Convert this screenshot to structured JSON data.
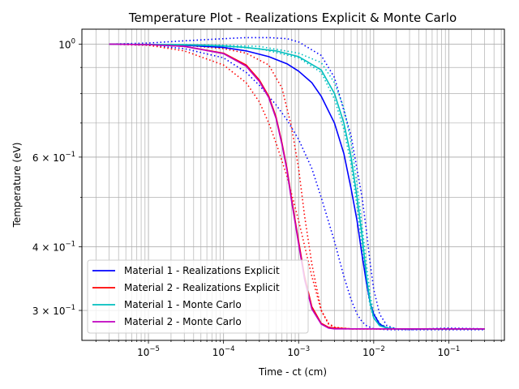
{
  "chart_data": {
    "type": "line",
    "title": "Temperature Plot - Realizations Explicit & Monte Carlo",
    "xlabel": "Time - ct (cm)",
    "ylabel": "Temperature (eV)",
    "xscale": "log",
    "yscale": "log",
    "xlim": [
      1.3e-06,
      0.55
    ],
    "ylim": [
      0.262,
      1.07
    ],
    "grid": "major and minor",
    "legend_position": "lower-left",
    "x_ticks": [
      {
        "value": 1e-05,
        "label": "10",
        "exp": "−5"
      },
      {
        "value": 0.0001,
        "label": "10",
        "exp": "−4"
      },
      {
        "value": 0.001,
        "label": "10",
        "exp": "−3"
      },
      {
        "value": 0.01,
        "label": "10",
        "exp": "−2"
      },
      {
        "value": 0.1,
        "label": "10",
        "exp": "−1"
      }
    ],
    "y_ticks": [
      {
        "value": 1.0,
        "label": "10",
        "exp": "0"
      },
      {
        "value": 0.6,
        "label": "6 × 10",
        "exp": "−1"
      },
      {
        "value": 0.4,
        "label": "4 × 10",
        "exp": "−1"
      },
      {
        "value": 0.3,
        "label": "3 × 10",
        "exp": "−1"
      }
    ],
    "series": [
      {
        "name": "Material 1 - Realizations Explicit",
        "color": "#0000ff",
        "style": "solid",
        "x": [
          3e-06,
          1e-05,
          3e-05,
          0.0001,
          0.0002,
          0.0004,
          0.0007,
          0.001,
          0.0015,
          0.002,
          0.003,
          0.004,
          0.005,
          0.006,
          0.007,
          0.008,
          0.009,
          0.01,
          0.012,
          0.015,
          0.02,
          0.05,
          0.1,
          0.3
        ],
        "y": [
          1.0,
          0.998,
          0.995,
          0.985,
          0.97,
          0.945,
          0.915,
          0.885,
          0.84,
          0.79,
          0.7,
          0.61,
          0.52,
          0.45,
          0.385,
          0.34,
          0.31,
          0.295,
          0.282,
          0.277,
          0.276,
          0.276,
          0.276,
          0.276
        ]
      },
      {
        "name": "Material 2 - Realizations Explicit",
        "color": "#ff0000",
        "style": "solid",
        "x": [
          3e-06,
          1e-05,
          3e-05,
          0.0001,
          0.0002,
          0.0003,
          0.0004,
          0.0005,
          0.0006,
          0.0007,
          0.0008,
          0.001,
          0.0012,
          0.0015,
          0.002,
          0.0025,
          0.003,
          0.005,
          0.01,
          0.03,
          0.1,
          0.3
        ],
        "y": [
          1.0,
          0.998,
          0.99,
          0.96,
          0.91,
          0.85,
          0.79,
          0.72,
          0.64,
          0.57,
          0.5,
          0.41,
          0.35,
          0.305,
          0.283,
          0.278,
          0.277,
          0.276,
          0.276,
          0.276,
          0.276,
          0.276
        ]
      },
      {
        "name": "Material 1 - Monte Carlo",
        "color": "#00bfbf",
        "style": "solid",
        "x": [
          3e-06,
          1e-05,
          3e-05,
          0.0001,
          0.0002,
          0.0005,
          0.001,
          0.002,
          0.003,
          0.004,
          0.005,
          0.006,
          0.007,
          0.008,
          0.009,
          0.01,
          0.012,
          0.015,
          0.02,
          0.03,
          0.1,
          0.3
        ],
        "y": [
          1.0,
          0.999,
          0.997,
          0.992,
          0.985,
          0.97,
          0.945,
          0.89,
          0.8,
          0.7,
          0.6,
          0.5,
          0.42,
          0.35,
          0.31,
          0.29,
          0.28,
          0.277,
          0.276,
          0.276,
          0.276,
          0.276
        ]
      },
      {
        "name": "Material 2 - Monte Carlo",
        "color": "#bf00bf",
        "style": "solid",
        "x": [
          3e-06,
          1e-05,
          3e-05,
          0.0001,
          0.0002,
          0.0003,
          0.0004,
          0.0005,
          0.0006,
          0.0007,
          0.0008,
          0.001,
          0.0012,
          0.0015,
          0.002,
          0.0025,
          0.003,
          0.005,
          0.01,
          0.03,
          0.1,
          0.3
        ],
        "y": [
          1.0,
          0.998,
          0.99,
          0.958,
          0.905,
          0.845,
          0.785,
          0.715,
          0.635,
          0.565,
          0.495,
          0.405,
          0.345,
          0.302,
          0.282,
          0.277,
          0.276,
          0.276,
          0.276,
          0.276,
          0.276,
          0.276
        ]
      },
      {
        "name": "",
        "color": "#0000ff",
        "style": "dotted",
        "x": [
          3e-06,
          1e-05,
          3e-05,
          0.0001,
          0.0002,
          0.0004,
          0.0007,
          0.001,
          0.002,
          0.003,
          0.005,
          0.007,
          0.008,
          0.009,
          0.01,
          0.012,
          0.015,
          0.02,
          0.03,
          0.05,
          0.1,
          0.3
        ],
        "y": [
          1.0,
          1.005,
          1.015,
          1.025,
          1.03,
          1.03,
          1.025,
          1.01,
          0.95,
          0.86,
          0.66,
          0.5,
          0.43,
          0.37,
          0.33,
          0.295,
          0.28,
          0.276,
          0.275,
          0.276,
          0.277,
          0.276
        ]
      },
      {
        "name": "",
        "color": "#0000ff",
        "style": "dotted",
        "x": [
          3e-06,
          1e-05,
          3e-05,
          0.0001,
          0.0002,
          0.0003,
          0.0005,
          0.0007,
          0.001,
          0.0015,
          0.002,
          0.003,
          0.004,
          0.005,
          0.006,
          0.007,
          0.008,
          0.01,
          0.015,
          0.02,
          0.05,
          0.1,
          0.3
        ],
        "y": [
          1.0,
          0.995,
          0.98,
          0.94,
          0.88,
          0.83,
          0.76,
          0.71,
          0.65,
          0.57,
          0.5,
          0.41,
          0.35,
          0.315,
          0.295,
          0.285,
          0.28,
          0.276,
          0.275,
          0.275,
          0.275,
          0.275,
          0.275
        ]
      },
      {
        "name": "",
        "color": "#ff0000",
        "style": "dotted",
        "x": [
          3e-06,
          1e-05,
          3e-05,
          0.0001,
          0.0002,
          0.0004,
          0.0006,
          0.0008,
          0.001,
          0.0012,
          0.0015,
          0.002,
          0.0025,
          0.003,
          0.004,
          0.01,
          0.3
        ],
        "y": [
          1.0,
          0.999,
          0.995,
          0.98,
          0.96,
          0.91,
          0.82,
          0.69,
          0.57,
          0.46,
          0.37,
          0.3,
          0.282,
          0.278,
          0.276,
          0.276,
          0.276
        ]
      },
      {
        "name": "",
        "color": "#ff0000",
        "style": "dotted",
        "x": [
          3e-06,
          1e-05,
          3e-05,
          0.0001,
          0.0002,
          0.0003,
          0.0004,
          0.0005,
          0.0007,
          0.001,
          0.0015,
          0.002,
          0.0025,
          0.003,
          0.005,
          0.01,
          0.3
        ],
        "y": [
          1.0,
          0.995,
          0.97,
          0.91,
          0.84,
          0.77,
          0.7,
          0.64,
          0.55,
          0.45,
          0.35,
          0.3,
          0.283,
          0.278,
          0.276,
          0.276,
          0.276
        ]
      },
      {
        "name": "",
        "color": "#00bfbf",
        "style": "dotted",
        "x": [
          3e-06,
          1e-05,
          3e-05,
          0.0001,
          0.0003,
          0.001,
          0.002,
          0.003,
          0.004,
          0.005,
          0.006,
          0.007,
          0.008,
          0.009,
          0.01,
          0.012,
          0.015,
          0.02,
          0.05,
          0.3
        ],
        "y": [
          1.0,
          0.999,
          0.998,
          0.995,
          0.99,
          0.96,
          0.92,
          0.84,
          0.75,
          0.64,
          0.53,
          0.44,
          0.37,
          0.32,
          0.297,
          0.283,
          0.278,
          0.276,
          0.276,
          0.276
        ]
      },
      {
        "name": "",
        "color": "#00bfbf",
        "style": "dotted",
        "x": [
          3e-06,
          1e-05,
          3e-05,
          0.0001,
          0.0003,
          0.001,
          0.002,
          0.003,
          0.004,
          0.005,
          0.006,
          0.007,
          0.008,
          0.009,
          0.01,
          0.012,
          0.015,
          0.02,
          0.05,
          0.3
        ],
        "y": [
          1.0,
          0.999,
          0.996,
          0.99,
          0.98,
          0.94,
          0.88,
          0.78,
          0.68,
          0.58,
          0.48,
          0.4,
          0.34,
          0.305,
          0.29,
          0.28,
          0.277,
          0.276,
          0.276,
          0.276
        ]
      }
    ]
  }
}
